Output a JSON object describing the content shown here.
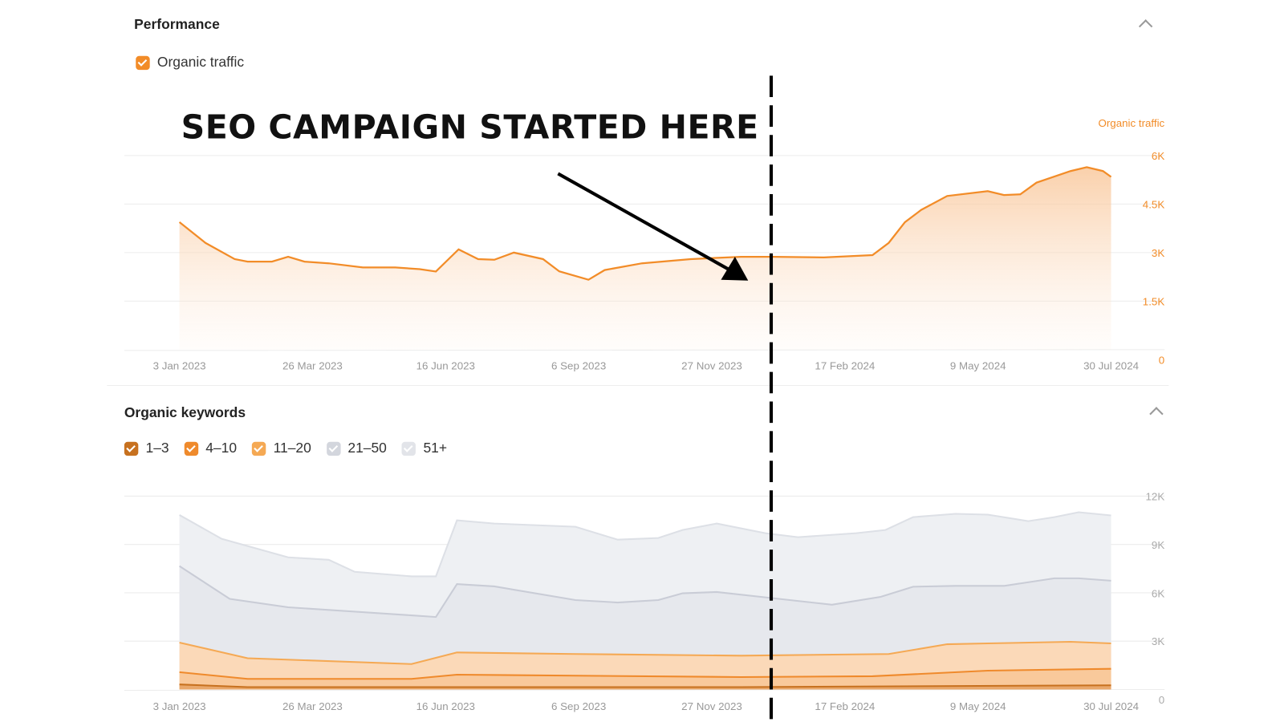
{
  "performance": {
    "title": "Performance",
    "legend": [
      {
        "label": "Organic traffic",
        "color": "#f28c28",
        "checked": true
      }
    ]
  },
  "keywords": {
    "title": "Organic keywords",
    "legend": [
      {
        "label": "1–3",
        "color": "#c7711f",
        "checked": true
      },
      {
        "label": "4–10",
        "color": "#ef8a2c",
        "checked": true
      },
      {
        "label": "11–20",
        "color": "#f5a954",
        "checked": true
      },
      {
        "label": "21–50",
        "color": "#d3d6dd",
        "checked": true
      },
      {
        "label": "51+",
        "color": "#e2e4e9",
        "checked": true
      }
    ]
  },
  "annotation": {
    "text": "SEO CAMPAIGN STARTED HERE",
    "marker_day": 346
  },
  "chart_data": [
    {
      "type": "area",
      "title": "Organic traffic",
      "ylabel": "Organic traffic",
      "x_unit": "days since 3 Jan 2023",
      "xticks": [
        "3 Jan 2023",
        "26 Mar 2023",
        "16 Jun 2023",
        "6 Sep 2023",
        "27 Nov 2023",
        "17 Feb 2024",
        "9 May 2024",
        "30 Jul 2024"
      ],
      "yticks": [
        "6K",
        "4.5K",
        "3K",
        "1.5K",
        "0"
      ],
      "ylim": [
        0,
        6000
      ],
      "series": [
        {
          "name": "Organic traffic",
          "color": "#f28c28",
          "points": [
            [
              0,
              3940
            ],
            [
              16,
              3300
            ],
            [
              34,
              2800
            ],
            [
              42,
              2720
            ],
            [
              57,
              2720
            ],
            [
              67,
              2870
            ],
            [
              77,
              2720
            ],
            [
              92,
              2670
            ],
            [
              113,
              2540
            ],
            [
              133,
              2540
            ],
            [
              148,
              2490
            ],
            [
              158,
              2415
            ],
            [
              172,
              3100
            ],
            [
              184,
              2800
            ],
            [
              194,
              2780
            ],
            [
              206,
              3000
            ],
            [
              224,
              2800
            ],
            [
              234,
              2420
            ],
            [
              252,
              2160
            ],
            [
              262,
              2460
            ],
            [
              285,
              2670
            ],
            [
              315,
              2800
            ],
            [
              346,
              2870
            ],
            [
              366,
              2870
            ],
            [
              397,
              2850
            ],
            [
              427,
              2920
            ],
            [
              437,
              3300
            ],
            [
              447,
              3940
            ],
            [
              457,
              4320
            ],
            [
              473,
              4750
            ],
            [
              498,
              4900
            ],
            [
              508,
              4780
            ],
            [
              518,
              4800
            ],
            [
              528,
              5160
            ],
            [
              549,
              5520
            ],
            [
              559,
              5640
            ],
            [
              569,
              5520
            ],
            [
              574,
              5340
            ]
          ]
        }
      ]
    },
    {
      "type": "area",
      "title": "Organic keywords",
      "stacked": true,
      "x_unit": "days since 3 Jan 2023",
      "xticks": [
        "3 Jan 2023",
        "26 Mar 2023",
        "16 Jun 2023",
        "6 Sep 2023",
        "27 Nov 2023",
        "17 Feb 2024",
        "9 May 2024",
        "30 Jul 2024"
      ],
      "yticks": [
        "12K",
        "9K",
        "6K",
        "3K",
        "0"
      ],
      "ylim": [
        0,
        12000
      ],
      "series_cumulative": [
        {
          "name": "51+",
          "fill": "#eef0f3",
          "line": "#dde0e6",
          "points": [
            [
              0,
              10830
            ],
            [
              26,
              9350
            ],
            [
              67,
              8200
            ],
            [
              92,
              8050
            ],
            [
              108,
              7300
            ],
            [
              143,
              7020
            ],
            [
              158,
              7020
            ],
            [
              171,
              10500
            ],
            [
              194,
              10300
            ],
            [
              244,
              10100
            ],
            [
              270,
              9300
            ],
            [
              295,
              9400
            ],
            [
              310,
              9900
            ],
            [
              331,
              10300
            ],
            [
              361,
              9700
            ],
            [
              381,
              9450
            ],
            [
              417,
              9700
            ],
            [
              435,
              9900
            ],
            [
              452,
              10700
            ],
            [
              478,
              10900
            ],
            [
              498,
              10850
            ],
            [
              523,
              10450
            ],
            [
              539,
              10700
            ],
            [
              554,
              11000
            ],
            [
              574,
              10800
            ]
          ]
        },
        {
          "name": "21–50",
          "fill": "#e6e8ed",
          "line": "#c9ccd6",
          "points": [
            [
              0,
              7660
            ],
            [
              31,
              5620
            ],
            [
              67,
              5100
            ],
            [
              143,
              4600
            ],
            [
              158,
              4500
            ],
            [
              171,
              6540
            ],
            [
              194,
              6400
            ],
            [
              244,
              5550
            ],
            [
              270,
              5400
            ],
            [
              295,
              5550
            ],
            [
              310,
              5970
            ],
            [
              331,
              6050
            ],
            [
              361,
              5720
            ],
            [
              402,
              5260
            ],
            [
              432,
              5750
            ],
            [
              452,
              6380
            ],
            [
              478,
              6430
            ],
            [
              508,
              6430
            ],
            [
              539,
              6900
            ],
            [
              554,
              6900
            ],
            [
              574,
              6750
            ]
          ]
        },
        {
          "name": "11–20",
          "fill": "#fbd9b8",
          "line": "#f5a954",
          "points": [
            [
              0,
              2910
            ],
            [
              42,
              1940
            ],
            [
              143,
              1580
            ],
            [
              171,
              2300
            ],
            [
              244,
              2200
            ],
            [
              346,
              2100
            ],
            [
              437,
              2200
            ],
            [
              473,
              2810
            ],
            [
              498,
              2860
            ],
            [
              549,
              2960
            ],
            [
              574,
              2860
            ]
          ]
        },
        {
          "name": "4–10",
          "fill": "#f9c99b",
          "line": "#ef8a2c",
          "points": [
            [
              0,
              1070
            ],
            [
              42,
              660
            ],
            [
              143,
              660
            ],
            [
              171,
              920
            ],
            [
              346,
              770
            ],
            [
              427,
              820
            ],
            [
              498,
              1170
            ],
            [
              574,
              1280
            ]
          ]
        },
        {
          "name": "1–3",
          "fill": "#e9a76a",
          "line": "#c7711f",
          "points": [
            [
              0,
              310
            ],
            [
              42,
              150
            ],
            [
              346,
              150
            ],
            [
              574,
              260
            ]
          ]
        }
      ]
    }
  ]
}
